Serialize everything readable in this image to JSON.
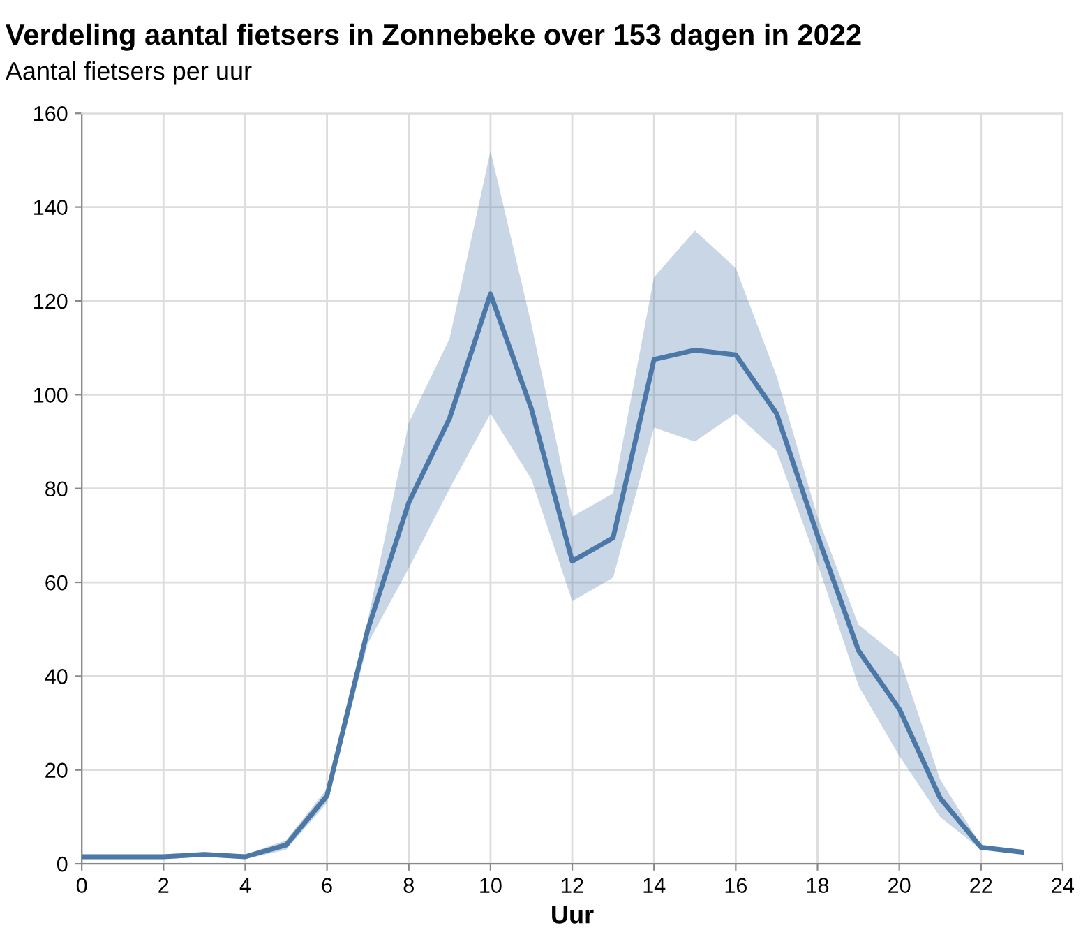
{
  "chart_data": {
    "type": "line",
    "title": "Verdeling aantal fietsers in Zonnebeke over 153 dagen in 2022",
    "subtitle": "Aantal fietsers per uur",
    "xlabel": "Uur",
    "x": [
      0,
      1,
      2,
      3,
      4,
      5,
      6,
      7,
      8,
      9,
      10,
      11,
      12,
      13,
      14,
      15,
      16,
      17,
      18,
      19,
      20,
      21,
      22,
      23
    ],
    "series": [
      {
        "color": "#4c78a8",
        "values": [
          1.5,
          1.5,
          1.5,
          2,
          1.5,
          4,
          14.5,
          50,
          77,
          95,
          121.5,
          97,
          64.5,
          69.5,
          107.5,
          109.5,
          108.5,
          96,
          70,
          45.5,
          33,
          14,
          3.5,
          2.5
        ],
        "lower": [
          1,
          1,
          1,
          1.5,
          1,
          3,
          13,
          47,
          63,
          80,
          96,
          82,
          56,
          61,
          93,
          90,
          96,
          88,
          64,
          38,
          23,
          10,
          3,
          2.5
        ],
        "upper": [
          2,
          2,
          2,
          2.5,
          2,
          5,
          16,
          52,
          94,
          112,
          152,
          115,
          74,
          79,
          125,
          135,
          127,
          104,
          74,
          51,
          44,
          18,
          4,
          2.5
        ]
      }
    ],
    "xlim": [
      0,
      24
    ],
    "xticks": [
      0,
      2,
      4,
      6,
      8,
      10,
      12,
      14,
      16,
      18,
      20,
      22,
      24
    ],
    "ylim": [
      0,
      160
    ],
    "yticks": [
      0,
      20,
      40,
      60,
      80,
      100,
      120,
      140,
      160
    ],
    "grid": true,
    "legend": false,
    "marker": "none",
    "line_style": "solid"
  }
}
